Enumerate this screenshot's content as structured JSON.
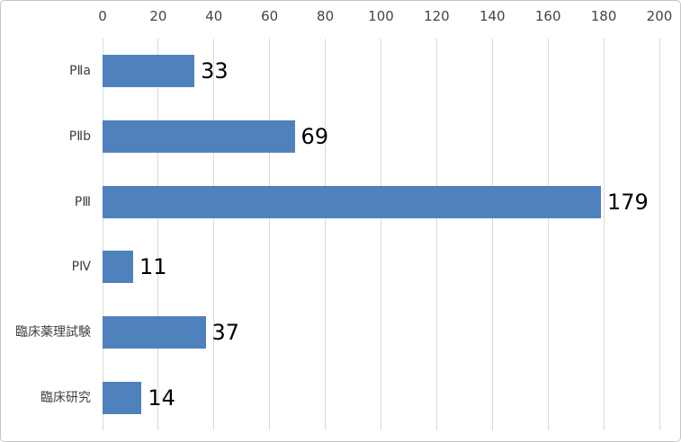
{
  "chart_data": {
    "type": "bar",
    "orientation": "horizontal",
    "title": "",
    "xlabel": "",
    "ylabel": "",
    "categories": [
      "PⅡa",
      "PⅡb",
      "PⅢ",
      "PⅣ",
      "臨床薬理試験",
      "臨床研究"
    ],
    "values": [
      33,
      69,
      179,
      11,
      37,
      14
    ],
    "data_labels": [
      "33",
      "69",
      "179",
      "11",
      "37",
      "14"
    ],
    "xlim": [
      0,
      200
    ],
    "xticks": [
      0,
      20,
      40,
      60,
      80,
      100,
      120,
      140,
      160,
      180,
      200
    ],
    "tick_labels": [
      "0",
      "20",
      "40",
      "60",
      "80",
      "100",
      "120",
      "140",
      "160",
      "180",
      "200"
    ],
    "axis_position": "top",
    "grid": true,
    "legend": false,
    "colors": {
      "bar": "#4F81BD",
      "gridline": "#D9D9D9",
      "tick_label": "#444444",
      "category_label": "#404040",
      "data_label": "#000000",
      "frame_border": "#C6C6C6",
      "background": "#FFFFFF"
    }
  }
}
